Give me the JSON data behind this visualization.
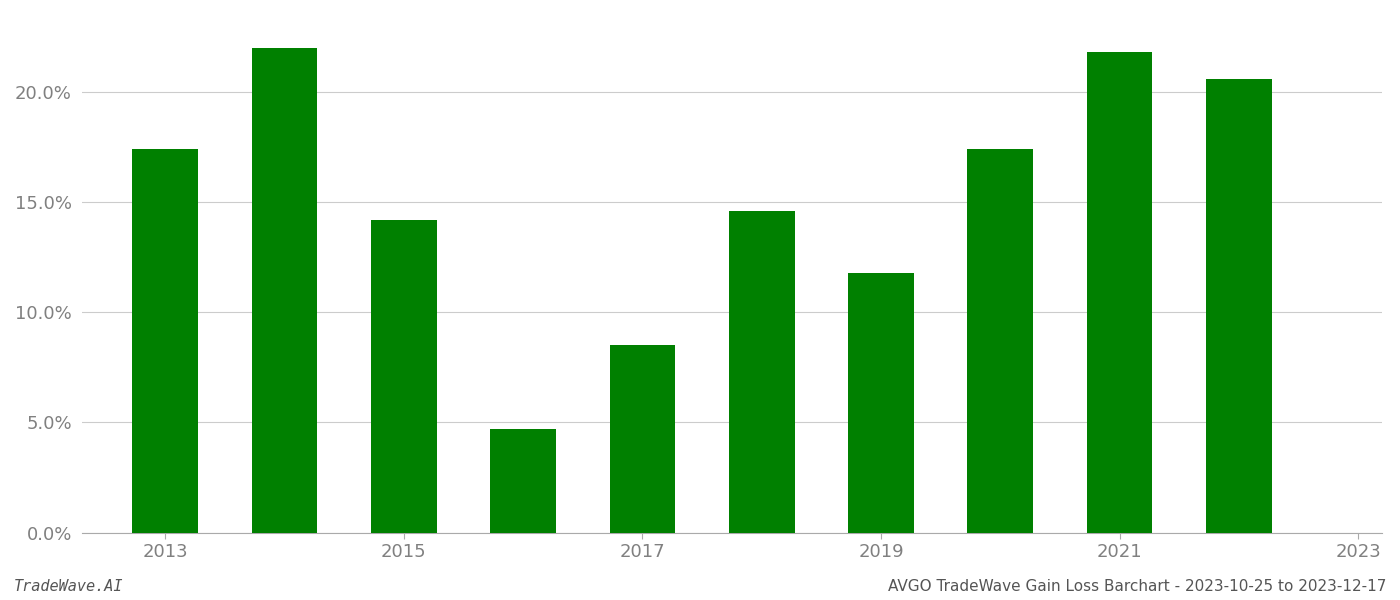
{
  "years": [
    2013,
    2014,
    2015,
    2016,
    2017,
    2018,
    2019,
    2020,
    2021,
    2022
  ],
  "values": [
    0.174,
    0.22,
    0.142,
    0.047,
    0.085,
    0.146,
    0.118,
    0.174,
    0.218,
    0.206
  ],
  "bar_color": "#008000",
  "background_color": "#ffffff",
  "grid_color": "#cccccc",
  "ylabel_color": "#808080",
  "xlabel_color": "#808080",
  "ytick_values": [
    0.0,
    0.05,
    0.1,
    0.15,
    0.2
  ],
  "ylim": [
    0,
    0.235
  ],
  "xtick_labels": [
    "2013",
    "2015",
    "2017",
    "2019",
    "2021",
    "2023"
  ],
  "footer_left": "TradeWave.AI",
  "footer_right": "AVGO TradeWave Gain Loss Barchart - 2023-10-25 to 2023-12-17",
  "bar_width": 0.55
}
